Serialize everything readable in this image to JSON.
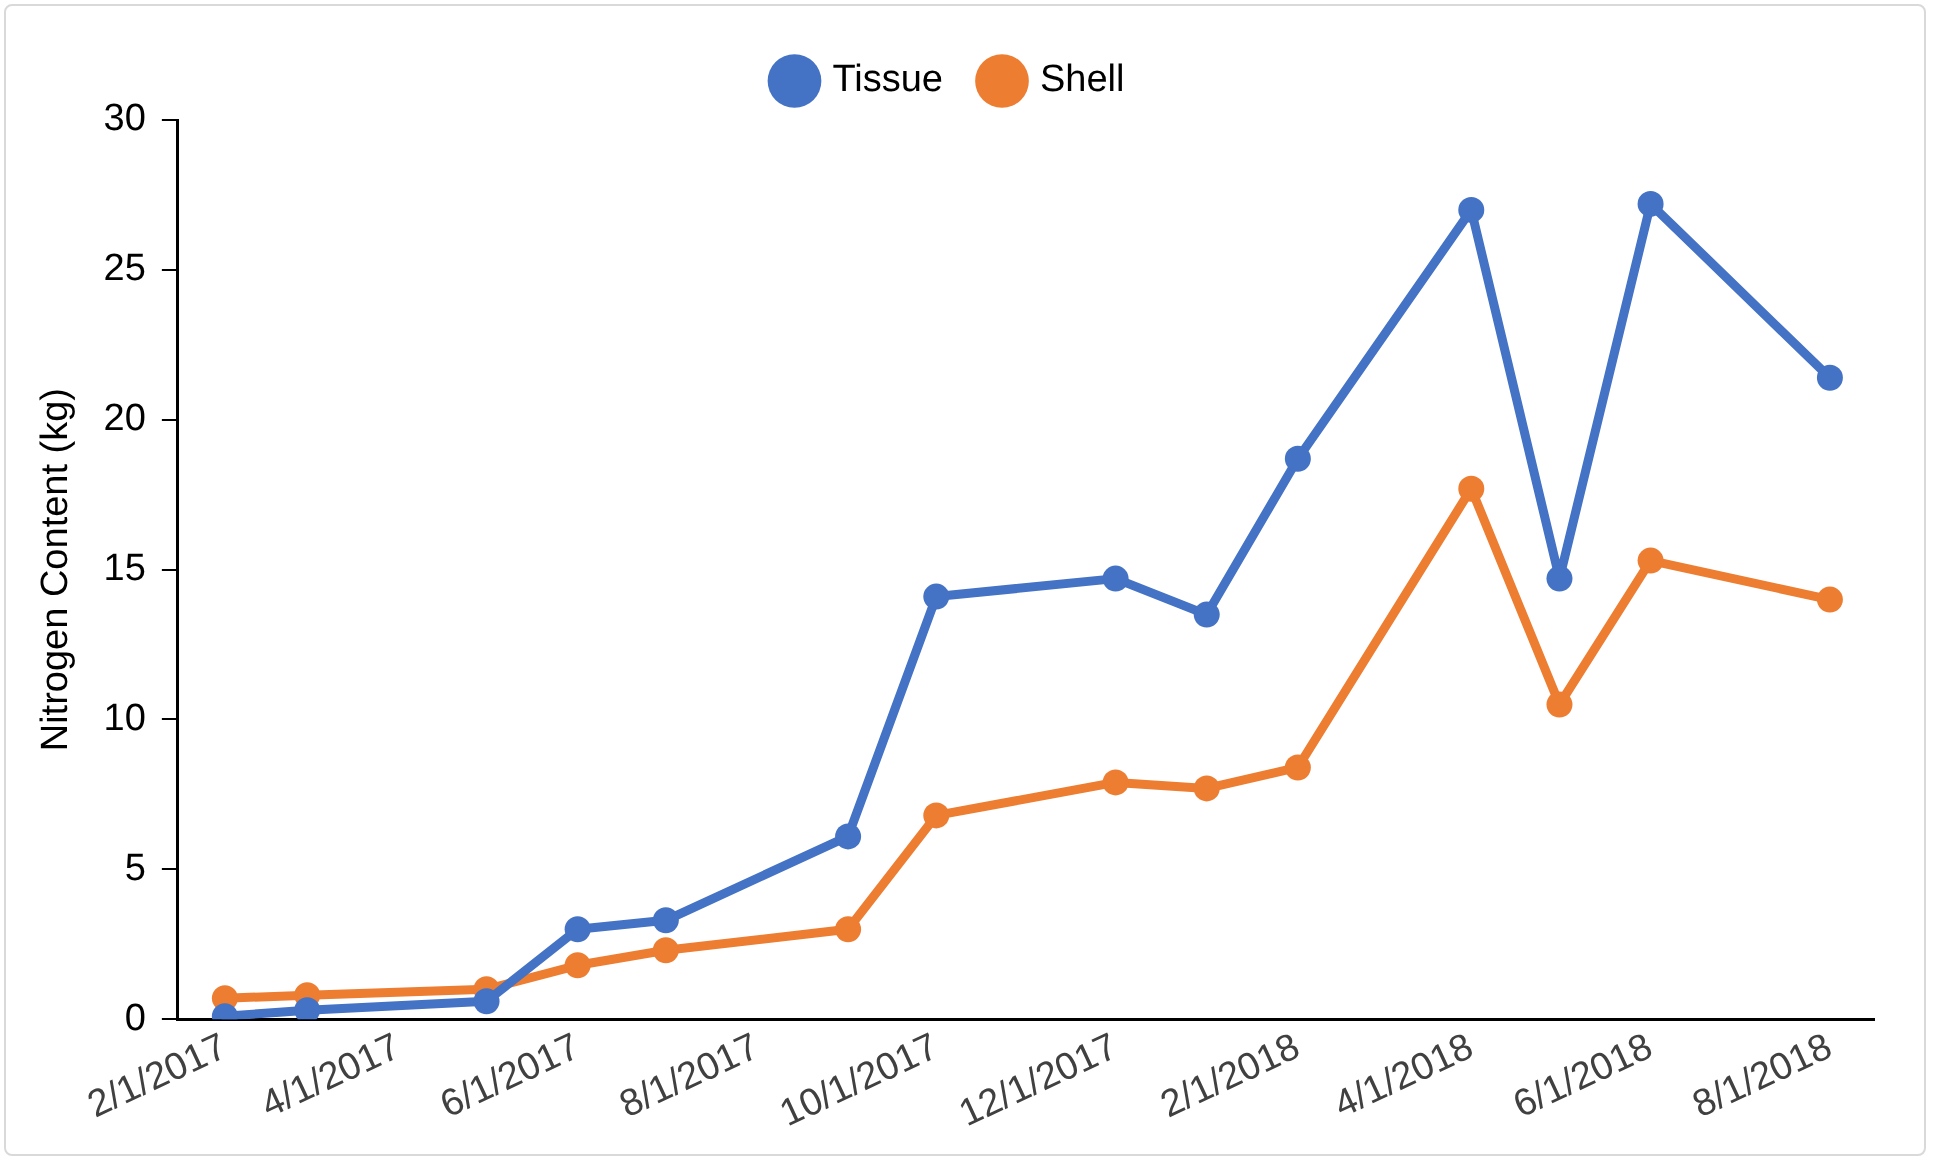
{
  "chart_data": {
    "type": "line",
    "ylabel": "Nitrogen Content (kg)",
    "x": [
      "2017-02",
      "2017-03",
      "2017-05",
      "2017-06",
      "2017-07",
      "2017-09",
      "2017-10",
      "2017-12",
      "2018-01",
      "2018-02",
      "2018-04",
      "2018-05",
      "2018-06",
      "2018-08"
    ],
    "series": [
      {
        "name": "Tissue",
        "color": "#4472c4",
        "values": [
          0.1,
          0.3,
          0.6,
          3.0,
          3.3,
          6.1,
          14.1,
          14.7,
          13.5,
          18.7,
          27.0,
          14.7,
          27.2,
          21.4
        ]
      },
      {
        "name": "Shell",
        "color": "#ed7d31",
        "values": [
          0.7,
          0.8,
          1.0,
          1.8,
          2.3,
          3.0,
          6.8,
          7.9,
          7.7,
          8.4,
          17.7,
          10.5,
          15.3,
          14.0
        ]
      }
    ],
    "xlim": [
      "2017-01-16",
      "2018-08-16"
    ],
    "xticks": [
      {
        "value": "2017-02",
        "label": "2/1/2017"
      },
      {
        "value": "2017-04",
        "label": "4/1/2017"
      },
      {
        "value": "2017-06",
        "label": "6/1/2017"
      },
      {
        "value": "2017-08",
        "label": "8/1/2017"
      },
      {
        "value": "2017-10",
        "label": "10/1/2017"
      },
      {
        "value": "2017-12",
        "label": "12/1/2017"
      },
      {
        "value": "2018-02",
        "label": "2/1/2018"
      },
      {
        "value": "2018-04",
        "label": "4/1/2018"
      },
      {
        "value": "2018-06",
        "label": "6/1/2018"
      },
      {
        "value": "2018-08",
        "label": "8/1/2018"
      }
    ],
    "ylim": [
      0,
      30
    ],
    "yticks": [
      0,
      5,
      10,
      15,
      20,
      25,
      30
    ],
    "grid": false,
    "legend": "top",
    "marker": "circle",
    "line_style": "solid"
  }
}
